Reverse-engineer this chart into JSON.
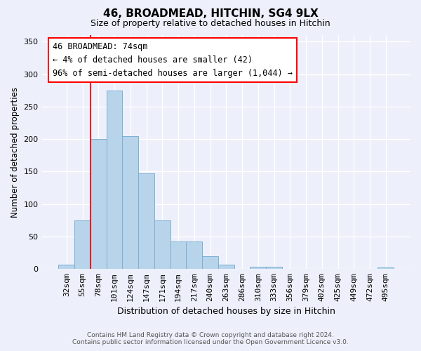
{
  "title": "46, BROADMEAD, HITCHIN, SG4 9LX",
  "subtitle": "Size of property relative to detached houses in Hitchin",
  "xlabel": "Distribution of detached houses by size in Hitchin",
  "ylabel": "Number of detached properties",
  "bar_labels": [
    "32sqm",
    "55sqm",
    "78sqm",
    "101sqm",
    "124sqm",
    "147sqm",
    "171sqm",
    "194sqm",
    "217sqm",
    "240sqm",
    "263sqm",
    "286sqm",
    "310sqm",
    "333sqm",
    "356sqm",
    "379sqm",
    "402sqm",
    "425sqm",
    "449sqm",
    "472sqm",
    "495sqm"
  ],
  "bar_values": [
    7,
    75,
    200,
    275,
    205,
    147,
    75,
    42,
    42,
    20,
    7,
    0,
    4,
    4,
    0,
    0,
    0,
    0,
    0,
    0,
    2
  ],
  "bar_color": "#b8d4ea",
  "bar_edge_color": "#7bafd4",
  "redline_x": 2.0,
  "ylim": [
    0,
    360
  ],
  "yticks": [
    0,
    50,
    100,
    150,
    200,
    250,
    300,
    350
  ],
  "annotation_title": "46 BROADMEAD: 74sqm",
  "annotation_line1": "← 4% of detached houses are smaller (42)",
  "annotation_line2": "96% of semi-detached houses are larger (1,044) →",
  "footer_line1": "Contains HM Land Registry data © Crown copyright and database right 2024.",
  "footer_line2": "Contains public sector information licensed under the Open Government Licence v3.0.",
  "bg_color": "#edf0fa"
}
